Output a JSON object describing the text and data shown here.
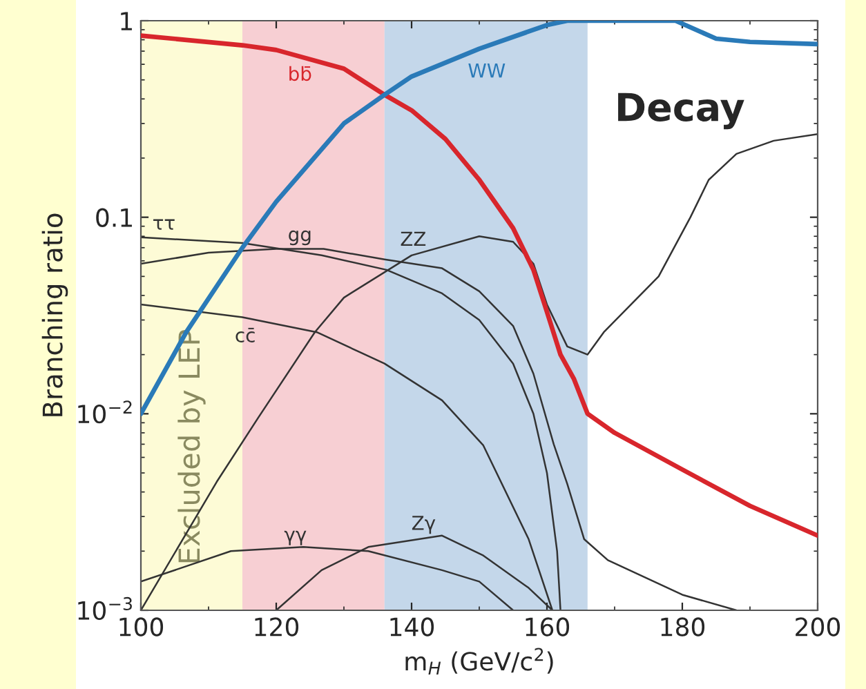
{
  "chart_data": {
    "type": "line",
    "ylabel": "Branching ratio",
    "xlabel": "m$_{H}$ (GeV/c$^{2}$)",
    "xlim": [
      100,
      200
    ],
    "xticks": [
      100,
      120,
      140,
      160,
      180,
      200
    ],
    "ylim": [
      0.001,
      1
    ],
    "log": "y",
    "yticks": [
      {
        "value": 0.001,
        "label": "10$^{−3}$"
      },
      {
        "value": 0.01,
        "label": "10$^{−2}$"
      },
      {
        "value": 0.1,
        "label": "0.1"
      },
      {
        "value": 1,
        "label": "1"
      }
    ],
    "grid": false,
    "legend": false,
    "bands": [
      {
        "axis": "x",
        "from": 100,
        "to": 115,
        "label": "Excluded by LEP",
        "color": "#fdfbd6"
      },
      {
        "axis": "x",
        "from": 115,
        "to": 136,
        "color": "#f7cfd3"
      },
      {
        "axis": "x",
        "from": 136,
        "to": 166,
        "color": "#c4d7ea"
      }
    ],
    "annotations": [
      "Decay"
    ],
    "series": [
      {
        "name": "bb̄",
        "color": "#d8262c",
        "x": [
          100,
          115,
          120,
          130,
          136,
          140,
          145,
          150,
          155,
          158,
          160,
          162,
          164,
          166,
          170,
          180,
          190,
          200
        ],
        "values": [
          0.84,
          0.75,
          0.71,
          0.57,
          0.42,
          0.35,
          0.25,
          0.155,
          0.088,
          0.054,
          0.033,
          0.02,
          0.015,
          0.01,
          0.008,
          0.0052,
          0.0034,
          0.0024
        ]
      },
      {
        "name": "WW",
        "color": "#2a7ab8",
        "x": [
          100,
          106.7,
          115,
          120,
          130,
          136,
          140,
          150,
          160,
          163,
          179,
          185,
          190,
          200
        ],
        "values": [
          0.01,
          0.026,
          0.07,
          0.12,
          0.3,
          0.42,
          0.52,
          0.72,
          0.95,
          1.0,
          1.0,
          0.81,
          0.78,
          0.76
        ]
      },
      {
        "name": "ZZ",
        "color": "#333333",
        "x": [
          100,
          111.2,
          117.3,
          125.7,
          130,
          140,
          150,
          155,
          158,
          160,
          163,
          166,
          168.4,
          176.5,
          181.2,
          183.9,
          188,
          193.5,
          200
        ],
        "values": [
          0.001,
          0.0045,
          0.0095,
          0.026,
          0.039,
          0.064,
          0.08,
          0.075,
          0.058,
          0.036,
          0.022,
          0.02,
          0.026,
          0.05,
          0.1,
          0.155,
          0.21,
          0.245,
          0.265
        ]
      },
      {
        "name": "ττ",
        "color": "#333333",
        "x": [
          100,
          115,
          126.7,
          136.3,
          144.5,
          150,
          155,
          158,
          160,
          161.5,
          162
        ],
        "values": [
          0.079,
          0.074,
          0.064,
          0.054,
          0.041,
          0.03,
          0.018,
          0.01,
          0.005,
          0.002,
          0.001
        ]
      },
      {
        "name": "gg",
        "color": "#333333",
        "x": [
          100,
          110,
          120,
          127,
          136,
          144.5,
          150,
          155,
          158,
          161,
          163,
          165.5,
          169,
          180,
          188
        ],
        "values": [
          0.058,
          0.066,
          0.069,
          0.069,
          0.061,
          0.055,
          0.042,
          0.028,
          0.016,
          0.007,
          0.0044,
          0.0023,
          0.0018,
          0.0012,
          0.001
        ]
      },
      {
        "name": "cc̄",
        "color": "#333333",
        "x": [
          100,
          115,
          126,
          136,
          144.5,
          150.6,
          157.3,
          160.8
        ],
        "values": [
          0.036,
          0.031,
          0.026,
          0.018,
          0.0117,
          0.0069,
          0.0023,
          0.001
        ]
      },
      {
        "name": "γγ",
        "color": "#333333",
        "x": [
          100,
          113.3,
          124,
          133.6,
          144.5,
          150,
          155
        ],
        "values": [
          0.0014,
          0.002,
          0.0021,
          0.002,
          0.0016,
          0.0014,
          0.001
        ]
      },
      {
        "name": "Zγ",
        "color": "#333333",
        "x": [
          120,
          126.7,
          133.6,
          144.5,
          150.6,
          157.3,
          160.8
        ],
        "values": [
          0.001,
          0.0016,
          0.0021,
          0.0024,
          0.0019,
          0.0013,
          0.001
        ]
      }
    ]
  }
}
